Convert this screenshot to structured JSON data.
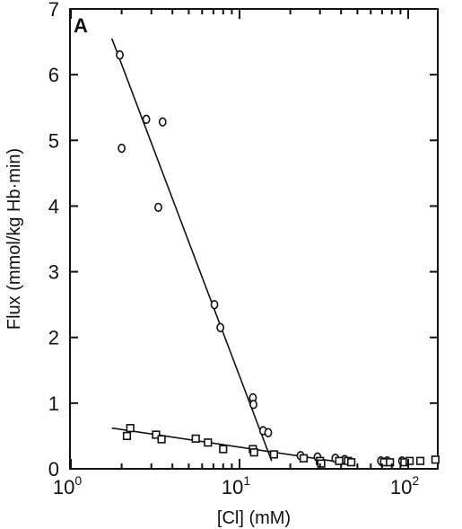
{
  "chart_data": {
    "type": "scatter",
    "panel_label": "A",
    "xlabel": "[Cl] (mM)",
    "ylabel": "Flux (mmol/kg Hb·min)",
    "x_scale": "log",
    "xlim": [
      1,
      200
    ],
    "ylim": [
      0,
      7
    ],
    "x_ticks": [
      {
        "value": 1,
        "base": "10",
        "exp": "0"
      },
      {
        "value": 10,
        "base": "10",
        "exp": "1"
      },
      {
        "value": 100,
        "base": "10",
        "exp": "2"
      }
    ],
    "y_ticks": [
      "0",
      "1",
      "2",
      "3",
      "4",
      "5",
      "6",
      "7"
    ],
    "grid": false,
    "series": [
      {
        "marker": "circle",
        "points": [
          {
            "x": 1.95,
            "y": 6.3
          },
          {
            "x": 2.0,
            "y": 4.88
          },
          {
            "x": 2.8,
            "y": 5.32
          },
          {
            "x": 3.5,
            "y": 5.28
          },
          {
            "x": 3.3,
            "y": 3.98
          },
          {
            "x": 7.1,
            "y": 2.5
          },
          {
            "x": 7.7,
            "y": 2.15
          },
          {
            "x": 12.0,
            "y": 1.08
          },
          {
            "x": 12.1,
            "y": 0.98
          },
          {
            "x": 13.8,
            "y": 0.58
          },
          {
            "x": 14.8,
            "y": 0.55
          },
          {
            "x": 23.0,
            "y": 0.2
          },
          {
            "x": 29.0,
            "y": 0.18
          },
          {
            "x": 37.0,
            "y": 0.16
          },
          {
            "x": 42.0,
            "y": 0.14
          },
          {
            "x": 69.0,
            "y": 0.12
          },
          {
            "x": 75.0,
            "y": 0.12
          },
          {
            "x": 92.0,
            "y": 0.12
          }
        ],
        "fit_line": [
          {
            "x": 1.75,
            "y": 6.55
          },
          {
            "x": 15.5,
            "y": 0.12
          }
        ]
      },
      {
        "marker": "square",
        "points": [
          {
            "x": 2.15,
            "y": 0.5
          },
          {
            "x": 2.25,
            "y": 0.62
          },
          {
            "x": 3.2,
            "y": 0.52
          },
          {
            "x": 3.45,
            "y": 0.45
          },
          {
            "x": 5.5,
            "y": 0.46
          },
          {
            "x": 6.5,
            "y": 0.4
          },
          {
            "x": 8.0,
            "y": 0.3
          },
          {
            "x": 12.0,
            "y": 0.3
          },
          {
            "x": 12.2,
            "y": 0.25
          },
          {
            "x": 16.0,
            "y": 0.22
          },
          {
            "x": 24.0,
            "y": 0.16
          },
          {
            "x": 30.0,
            "y": 0.12
          },
          {
            "x": 30.5,
            "y": 0.08
          },
          {
            "x": 39.0,
            "y": 0.12
          },
          {
            "x": 44.0,
            "y": 0.12
          },
          {
            "x": 46.0,
            "y": 0.1
          },
          {
            "x": 72.0,
            "y": 0.1
          },
          {
            "x": 78.0,
            "y": 0.1
          },
          {
            "x": 95.0,
            "y": 0.1
          },
          {
            "x": 102.0,
            "y": 0.12
          },
          {
            "x": 118.0,
            "y": 0.12
          },
          {
            "x": 145.0,
            "y": 0.14
          }
        ],
        "fit_line": [
          {
            "x": 1.75,
            "y": 0.62
          },
          {
            "x": 40.0,
            "y": 0.1
          }
        ]
      }
    ]
  }
}
